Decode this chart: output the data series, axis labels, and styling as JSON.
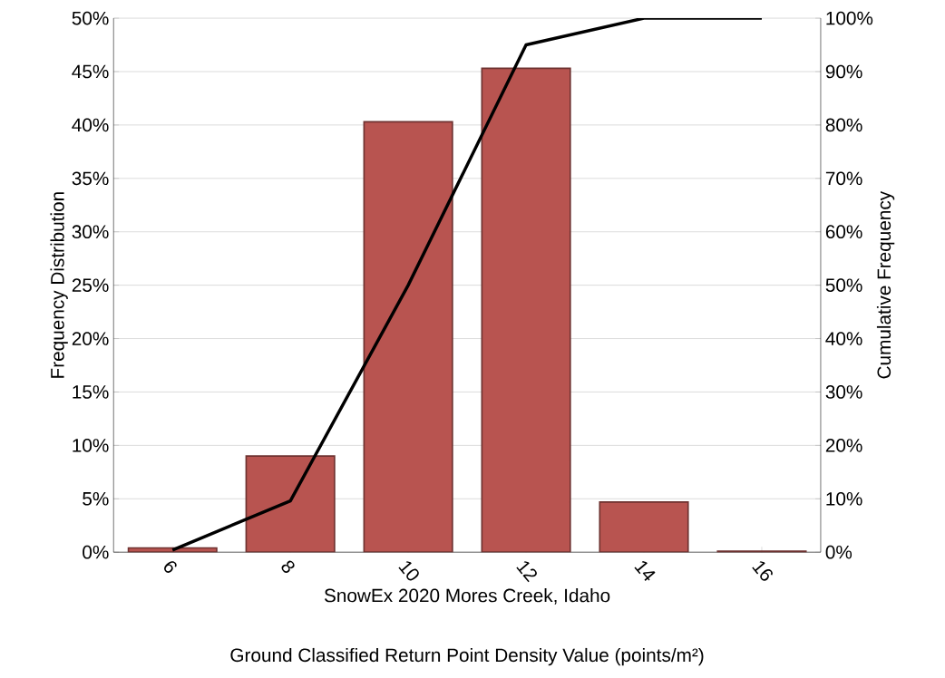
{
  "chart_data": {
    "type": "bar",
    "xlabel": "SnowEx 2020 Mores Creek, Idaho",
    "ylabel": "Frequency Distribution",
    "y2label": "Cumulative Frequency",
    "annotations": [
      "Ground Classified Return Point Density Value (points/m²)"
    ],
    "categories": [
      "6",
      "8",
      "10",
      "12",
      "14",
      "16"
    ],
    "series": [
      {
        "name": null,
        "color": "#b85450",
        "values": [
          0.4,
          9.0,
          40.3,
          45.3,
          4.7,
          0.1
        ]
      },
      {
        "name": null,
        "type": "line",
        "axis": "y2",
        "color": "#000000",
        "values": [
          0.4,
          9.6,
          50.0,
          95.0,
          100,
          100
        ]
      }
    ],
    "ylim": [
      0,
      50
    ],
    "yticks": [
      {
        "value": 0,
        "label": "0%"
      },
      {
        "value": 5,
        "label": "5%"
      },
      {
        "value": 10,
        "label": "10%"
      },
      {
        "value": 15,
        "label": "15%"
      },
      {
        "value": 20,
        "label": "20%"
      },
      {
        "value": 25,
        "label": "25%"
      },
      {
        "value": 30,
        "label": "30%"
      },
      {
        "value": 35,
        "label": "35%"
      },
      {
        "value": 40,
        "label": "40%"
      },
      {
        "value": 45,
        "label": "45%"
      },
      {
        "value": 50,
        "label": "50%"
      }
    ],
    "y2lim": [
      0,
      100
    ],
    "y2ticks": [
      {
        "value": 0,
        "label": "0%"
      },
      {
        "value": 10,
        "label": "10%"
      },
      {
        "value": 20,
        "label": "20%"
      },
      {
        "value": 30,
        "label": "30%"
      },
      {
        "value": 40,
        "label": "40%"
      },
      {
        "value": 50,
        "label": "50%"
      },
      {
        "value": 60,
        "label": "60%"
      },
      {
        "value": 70,
        "label": "70%"
      },
      {
        "value": 80,
        "label": "80%"
      },
      {
        "value": 90,
        "label": "90%"
      },
      {
        "value": 100,
        "label": "100%"
      }
    ],
    "grid": "y",
    "marker": "none",
    "line_style": "solid"
  }
}
